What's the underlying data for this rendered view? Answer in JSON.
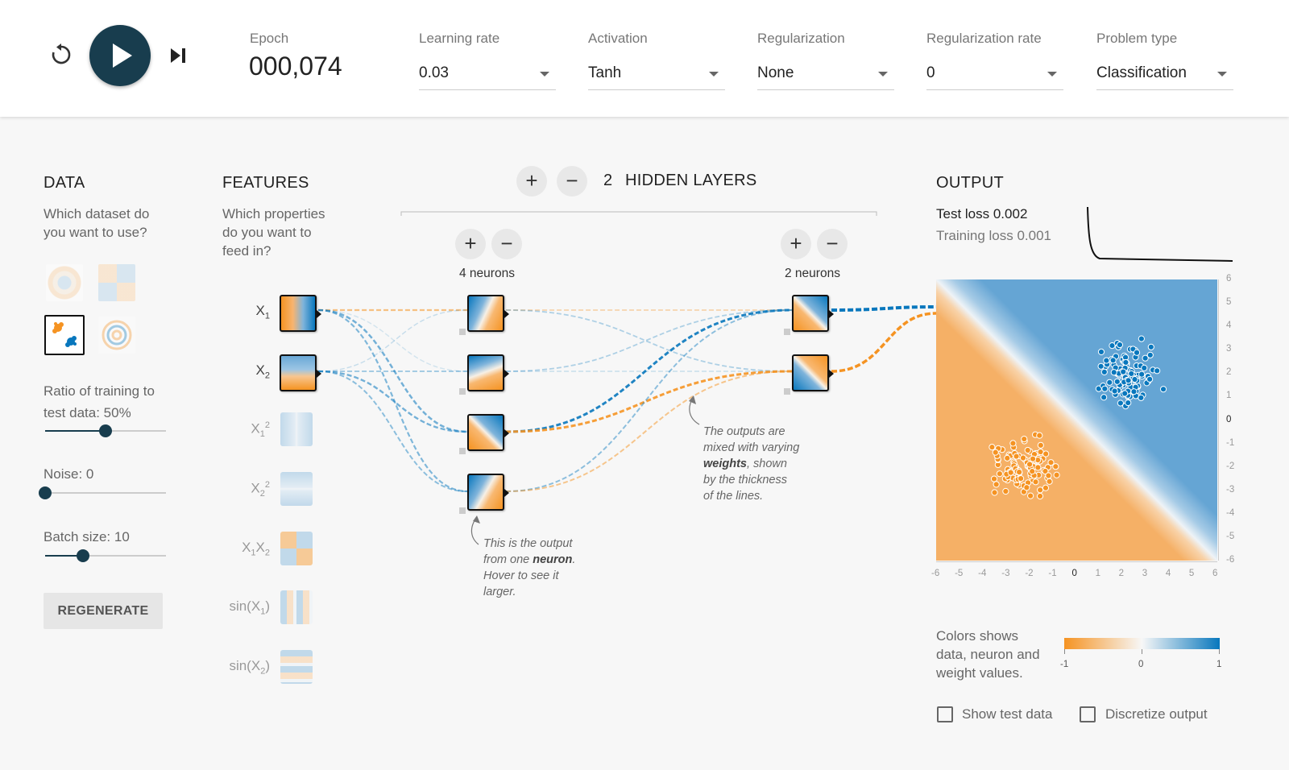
{
  "topbar": {
    "epoch_label": "Epoch",
    "epoch_value": "000,074",
    "learning_rate_label": "Learning rate",
    "learning_rate_value": "0.03",
    "activation_label": "Activation",
    "activation_value": "Tanh",
    "regularization_label": "Regularization",
    "regularization_value": "None",
    "reg_rate_label": "Regularization rate",
    "reg_rate_value": "0",
    "problem_type_label": "Problem type",
    "problem_type_value": "Classification"
  },
  "data_panel": {
    "title": "DATA",
    "subtitle_1": "Which dataset do",
    "subtitle_2": "you want to use?",
    "ratio_label": "Ratio of training to",
    "ratio_value_label": "test data:  50%",
    "ratio_value": 50,
    "noise_label": "Noise:  0",
    "noise_value": 0,
    "batch_label": "Batch size:  10",
    "batch_value": 10,
    "regenerate": "REGENERATE"
  },
  "features_panel": {
    "title": "FEATURES",
    "subtitle_1": "Which properties",
    "subtitle_2": "do you want to",
    "subtitle_3": "feed in?",
    "features": [
      {
        "base": "X",
        "sub": "1",
        "sup": "",
        "pre": "",
        "post": ""
      },
      {
        "base": "X",
        "sub": "2",
        "sup": "",
        "pre": "",
        "post": ""
      },
      {
        "base": "X",
        "sub": "1",
        "sup": "2",
        "pre": "",
        "post": ""
      },
      {
        "base": "X",
        "sub": "2",
        "sup": "2",
        "pre": "",
        "post": ""
      },
      {
        "base": "X",
        "sub": "1",
        "sup": "",
        "pre": "",
        "post": "X",
        "sub2": "2"
      },
      {
        "base": "X",
        "sub": "1",
        "sup": "",
        "pre": "sin(",
        "post": ")"
      },
      {
        "base": "X",
        "sub": "2",
        "sup": "",
        "pre": "sin(",
        "post": ")"
      }
    ]
  },
  "network": {
    "hidden_layers_count": "2",
    "hidden_layers_label": "HIDDEN LAYERS",
    "layer1_label": "4 neurons",
    "layer2_label": "2 neurons",
    "annotation_neuron_1": "This is the output",
    "annotation_neuron_2a": "from one ",
    "annotation_neuron_2b": "neuron",
    "annotation_neuron_2c": ".",
    "annotation_neuron_3": "Hover to see it",
    "annotation_neuron_4": "larger.",
    "annotation_weights_1": "The outputs are",
    "annotation_weights_2": "mixed with varying",
    "annotation_weights_3a": "weights",
    "annotation_weights_3b": ", shown",
    "annotation_weights_4": "by the thickness",
    "annotation_weights_5": "of the lines."
  },
  "output_panel": {
    "title": "OUTPUT",
    "test_loss": "Test loss 0.002",
    "training_loss": "Training loss 0.001",
    "legend_text_1": "Colors shows",
    "legend_text_2": "data, neuron and",
    "legend_text_3": "weight values.",
    "legend_ticks": [
      "-1",
      "0",
      "1"
    ],
    "show_test_data": "Show test data",
    "discretize_output": "Discretize output",
    "x_ticks": [
      "-6",
      "-5",
      "-4",
      "-3",
      "-2",
      "-1",
      "0",
      "1",
      "2",
      "3",
      "4",
      "5",
      "6"
    ],
    "y_ticks": [
      "6",
      "5",
      "4",
      "3",
      "2",
      "1",
      "0",
      "-1",
      "-2",
      "-3",
      "-4",
      "-5",
      "-6"
    ]
  },
  "colors": {
    "orange": "#f59322",
    "blue": "#0877bd",
    "dark": "#183d4e"
  }
}
